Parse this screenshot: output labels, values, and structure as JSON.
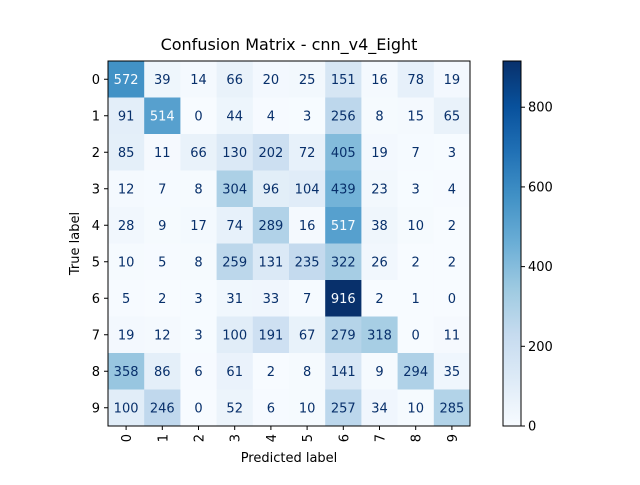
{
  "chart_data": {
    "type": "heatmap",
    "title": "Confusion Matrix - cnn_v4_Eight",
    "xlabel": "Predicted label",
    "ylabel": "True label",
    "x_categories": [
      "0",
      "1",
      "2",
      "3",
      "4",
      "5",
      "6",
      "7",
      "8",
      "9"
    ],
    "y_categories": [
      "0",
      "1",
      "2",
      "3",
      "4",
      "5",
      "6",
      "7",
      "8",
      "9"
    ],
    "values": [
      [
        572,
        39,
        14,
        66,
        20,
        25,
        151,
        16,
        78,
        19
      ],
      [
        91,
        514,
        0,
        44,
        4,
        3,
        256,
        8,
        15,
        65
      ],
      [
        85,
        11,
        66,
        130,
        202,
        72,
        405,
        19,
        7,
        3
      ],
      [
        12,
        7,
        8,
        304,
        96,
        104,
        439,
        23,
        3,
        4
      ],
      [
        28,
        9,
        17,
        74,
        289,
        16,
        517,
        38,
        10,
        2
      ],
      [
        10,
        5,
        8,
        259,
        131,
        235,
        322,
        26,
        2,
        2
      ],
      [
        5,
        2,
        3,
        31,
        33,
        7,
        916,
        2,
        1,
        0
      ],
      [
        19,
        12,
        3,
        100,
        191,
        67,
        279,
        318,
        0,
        11
      ],
      [
        358,
        86,
        6,
        61,
        2,
        8,
        141,
        9,
        294,
        35
      ],
      [
        100,
        246,
        0,
        52,
        6,
        10,
        257,
        34,
        10,
        285
      ]
    ],
    "colormap": "Blues",
    "value_range": [
      0,
      916
    ],
    "colorbar_ticks": [
      0,
      200,
      400,
      600,
      800
    ],
    "grid": false
  }
}
